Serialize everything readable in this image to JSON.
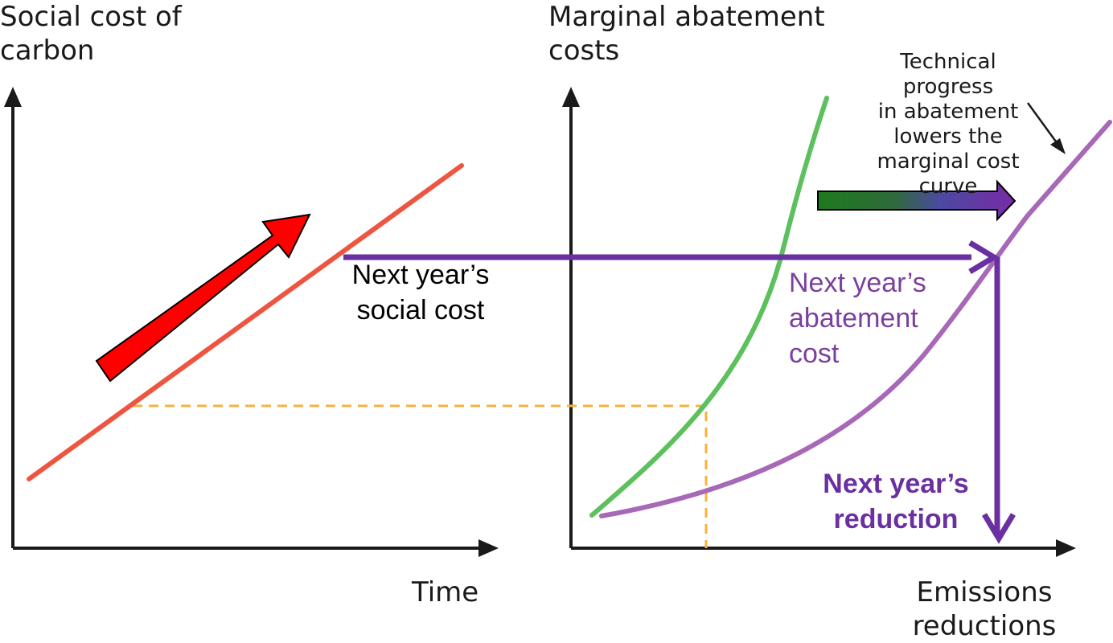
{
  "left_panel": {
    "y_axis_title": "Social cost of\ncarbon",
    "x_axis_title": "Time",
    "annotation": "Next year’s\nsocial cost"
  },
  "right_panel": {
    "y_axis_title": "Marginal abatement\ncosts",
    "x_axis_title": "Emissions\nreductions",
    "note": "Technical progress\nin abatement\nlowers the\nmarginal cost\ncurve",
    "abatement_label": "Next year’s\nabatement\ncost",
    "reduction_label": "Next year’s\nreduction"
  },
  "colors": {
    "axis": "#1a1a1a",
    "social_cost_line": "#ee5540",
    "growth_arrow": "#ff0000",
    "old_curve": "#5cc05c",
    "new_curve": "#a868b8",
    "projection_arrow": "#6a2fa0",
    "guide_dash": "#f7b23c",
    "shift_arrow_start": "#1e7a1e",
    "shift_arrow_end": "#7a2aa8"
  }
}
